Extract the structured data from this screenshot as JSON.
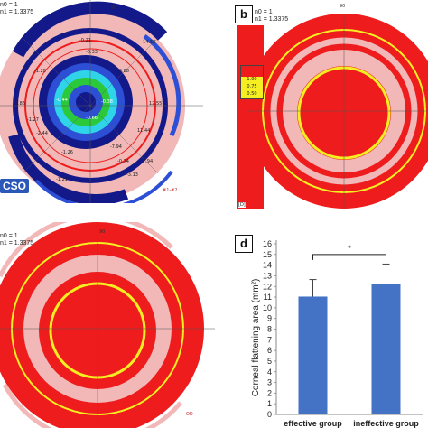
{
  "panels": {
    "a": {
      "axis_tag": "90",
      "hdr_n0": "n0 = 1",
      "hdr_n1": "n1 = 1.3375",
      "logo": "CSO",
      "patient_id": "#1-#2",
      "values": [
        "-0.21",
        "14.58",
        "-0.33",
        "-1.28",
        "-0.88",
        "-0.44",
        "-0.38",
        "12.55",
        "-3.86",
        "11.44",
        "-2.44",
        "-0.66",
        "-7.94",
        "-1.27",
        "-1.26",
        "-0.74",
        "-1.21",
        "7.94",
        "-3.13"
      ]
    },
    "b": {
      "letter": "b",
      "axis_tag": "90",
      "hdr_n0": "n0 = 1",
      "hdr_n1": "n1 = 1.3375",
      "scale_labels": [
        "1.00",
        "0.75",
        "0.50"
      ],
      "unit": "[D]"
    },
    "c": {
      "axis_tag": "90",
      "hdr_n0": "n0 = 1",
      "hdr_n1": "n1 = 1.3375",
      "patient_id": "OD"
    },
    "d": {
      "letter": "d",
      "significance": "*"
    }
  },
  "colors": {
    "map_red": "#ee1c1c",
    "map_pink": "#f2b8b8",
    "map_yellow": "#f4ee22",
    "map_darkblue": "#14198a",
    "map_blue": "#2c4fd6",
    "map_cyan": "#2fd4e8",
    "map_green": "#2ac83a",
    "bar_fill": "#4472c4"
  },
  "chart_data": {
    "type": "bar",
    "title": "",
    "xlabel": "",
    "ylabel": "Corneal flattening area (mm²)",
    "categories": [
      "effective group",
      "ineffective group"
    ],
    "values": [
      11.05,
      12.2
    ],
    "error_plus": [
      1.6,
      1.9
    ],
    "ylim": [
      0,
      16
    ],
    "yticks": [
      0,
      1,
      2,
      3,
      4,
      5,
      6,
      7,
      8,
      9,
      10,
      11,
      12,
      13,
      14,
      15,
      16
    ],
    "grid": false,
    "legend": "none",
    "annotation": "*"
  }
}
